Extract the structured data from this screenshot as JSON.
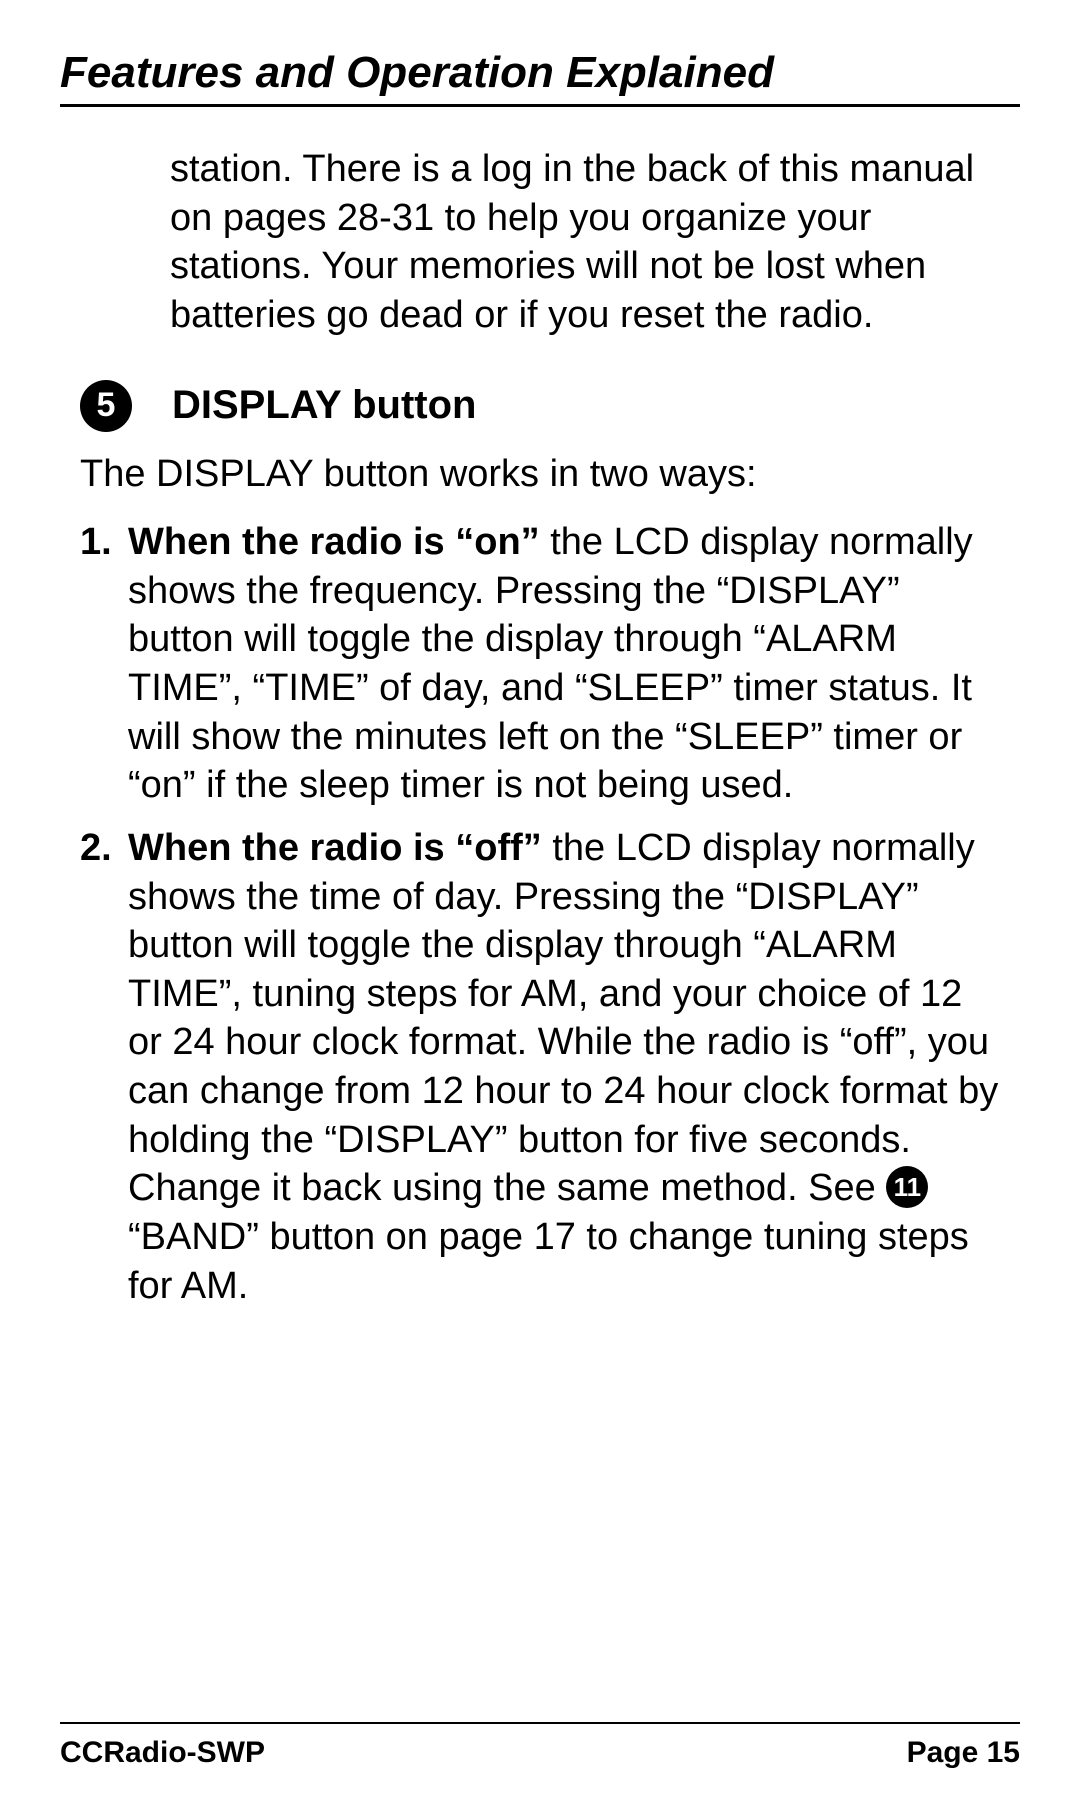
{
  "page": {
    "section_title": "Features and Operation Explained",
    "intro_paragraph": "station. There is a log in the back of this manual on pages 28-31 to help you organize your stations. Your memories will not be lost when batteries go dead or if you reset the radio.",
    "feature": {
      "number": "5",
      "title": "DISPLAY button",
      "intro": "The DISPLAY button works in two ways:",
      "items": [
        {
          "num": "1.",
          "bold_lead": "When the radio is “on”",
          "rest": " the LCD display normally shows the frequency. Pressing the “DISPLAY” button will toggle the dis­play through “ALARM TIME”, “TIME” of day, and “SLEEP” timer status. It will show the minutes left on the “SLEEP” timer or “on” if the sleep timer is not being used."
        },
        {
          "num": "2.",
          "bold_lead": "When the radio is “off”",
          "rest_before_circle": " the LCD display normally shows the time of day. Pressing the “DISPLAY” button will toggle the dis­play through “ALARM TIME”, tuning steps for AM, and your choice of 12 or 24 hour clock format. While the radio is “off”, you can change from 12 hour to 24 hour clock format by holding the “DIS­PLAY” button for five seconds. Change it back using the same method. See ",
          "inline_circle": "11",
          "rest_after_circle": " “BAND” button on page 17 to change tuning steps for AM."
        }
      ]
    },
    "footer": {
      "product": "CCRadio-SWP",
      "page_label": "Page 15"
    }
  },
  "style": {
    "text_color": "#000000",
    "background_color": "#ffffff",
    "title_fontsize": 44,
    "body_fontsize": 38,
    "footer_fontsize": 30,
    "circle_bg": "#000000",
    "circle_fg": "#ffffff"
  }
}
